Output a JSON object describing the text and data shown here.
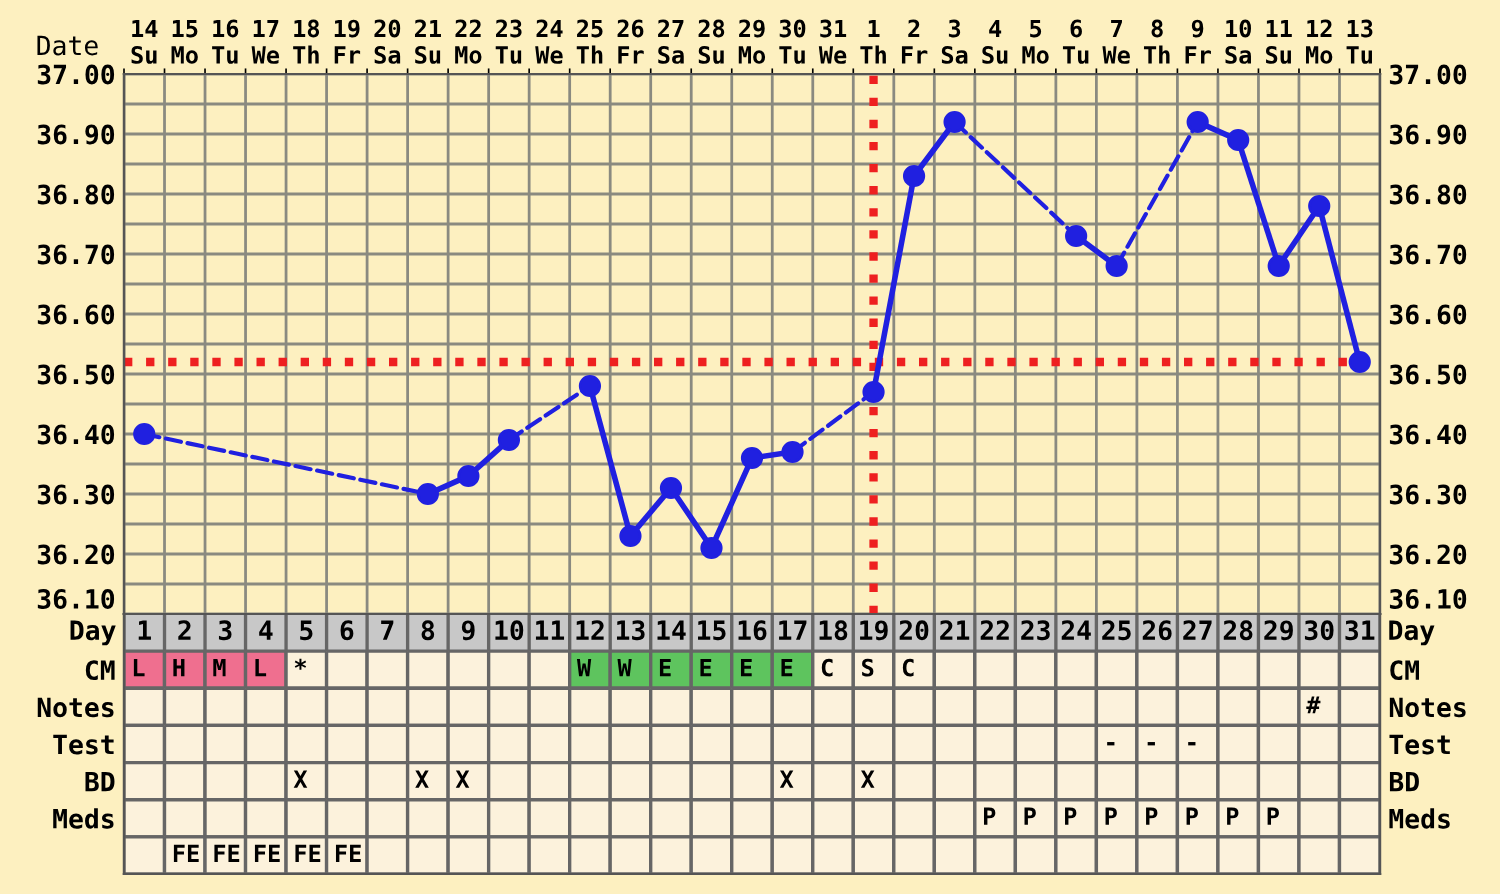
{
  "chart_data": [
    {
      "type": "line",
      "xlabel": "Date",
      "categories": [
        "14\nSu",
        "15\nMo",
        "16\nTu",
        "17\nWe",
        "18\nTh",
        "19\nFr",
        "20\nSa",
        "21\nSu",
        "22\nMo",
        "23\nTu",
        "24\nWe",
        "25\nTh",
        "26\nFr",
        "27\nSa",
        "28\nSu",
        "29\nMo",
        "30\nTu",
        "31\nWe",
        "1\nTh",
        "2\nFr",
        "3\nSa",
        "4\nSu",
        "5\nMo",
        "6\nTu",
        "7\nWe",
        "8\nTh",
        "9\nFr",
        "10\nSa",
        "11\nSu",
        "12\nMo",
        "13\nTu"
      ],
      "series": [
        {
          "color": "#2020e0",
          "values": [
            36.4,
            null,
            null,
            null,
            null,
            null,
            null,
            36.3,
            36.33,
            36.39,
            null,
            36.48,
            36.23,
            36.31,
            36.21,
            36.36,
            36.37,
            null,
            36.47,
            36.83,
            36.92,
            null,
            null,
            36.73,
            36.68,
            null,
            36.92,
            36.89,
            36.68,
            36.78,
            36.52
          ]
        }
      ],
      "ylim": [
        36.1,
        37.0
      ],
      "yticks": [
        {
          "value": 36.1,
          "label": "36.10"
        },
        {
          "value": 36.15,
          "label": null
        },
        {
          "value": 36.2,
          "label": "36.20"
        },
        {
          "value": 36.25,
          "label": null
        },
        {
          "value": 36.3,
          "label": "36.30"
        },
        {
          "value": 36.35,
          "label": null
        },
        {
          "value": 36.4,
          "label": "36.40"
        },
        {
          "value": 36.45,
          "label": null
        },
        {
          "value": 36.5,
          "label": "36.50"
        },
        {
          "value": 36.55,
          "label": null
        },
        {
          "value": 36.6,
          "label": "36.60"
        },
        {
          "value": 36.65,
          "label": null
        },
        {
          "value": 36.7,
          "label": "36.70"
        },
        {
          "value": 36.75,
          "label": null
        },
        {
          "value": 36.8,
          "label": "36.80"
        },
        {
          "value": 36.85,
          "label": null
        },
        {
          "value": 36.9,
          "label": "36.90"
        },
        {
          "value": 36.95,
          "label": null
        },
        {
          "value": 37.0,
          "label": "37.00"
        }
      ],
      "y2lim": [
        36.1,
        37.0
      ],
      "y2ticks": [
        {
          "value": 36.1,
          "label": "36.10"
        },
        {
          "value": 36.15,
          "label": null
        },
        {
          "value": 36.2,
          "label": "36.20"
        },
        {
          "value": 36.25,
          "label": null
        },
        {
          "value": 36.3,
          "label": "36.30"
        },
        {
          "value": 36.35,
          "label": null
        },
        {
          "value": 36.4,
          "label": "36.40"
        },
        {
          "value": 36.45,
          "label": null
        },
        {
          "value": 36.5,
          "label": "36.50"
        },
        {
          "value": 36.55,
          "label": null
        },
        {
          "value": 36.6,
          "label": "36.60"
        },
        {
          "value": 36.65,
          "label": null
        },
        {
          "value": 36.7,
          "label": "36.70"
        },
        {
          "value": 36.75,
          "label": null
        },
        {
          "value": 36.8,
          "label": "36.80"
        },
        {
          "value": 36.85,
          "label": null
        },
        {
          "value": 36.9,
          "label": "36.90"
        },
        {
          "value": 36.95,
          "label": null
        },
        {
          "value": 37.0,
          "label": "37.00"
        }
      ],
      "ref_lines": [
        {
          "axis": "y",
          "value": 36.52,
          "color": "#ee2020",
          "line_style": "dotted"
        },
        {
          "axis": "x",
          "value": "1\nTh",
          "color": "#ee2020",
          "line_style": "dotted"
        }
      ],
      "grid": true,
      "marker": "circle",
      "line_style": "solid",
      "legend": false
    },
    {
      "type": "heatmap",
      "xlabel": "Day",
      "categories": [
        "1",
        "2",
        "3",
        "4",
        "5",
        "6",
        "7",
        "8",
        "9",
        "10",
        "11",
        "12",
        "13",
        "14",
        "15",
        "16",
        "17",
        "18",
        "19",
        "20",
        "21",
        "22",
        "23",
        "24",
        "25",
        "26",
        "27",
        "28",
        "29",
        "30",
        "31"
      ],
      "y_categories": [
        "CM",
        "Notes",
        "Test",
        "BD",
        "Meds",
        null
      ],
      "y2_categories": [
        "CM",
        "Notes",
        "Test",
        "BD",
        "Meds",
        null
      ],
      "cells": [
        [
          "L",
          "H",
          "M",
          "L",
          "*",
          null,
          null,
          null,
          null,
          null,
          null,
          "W",
          "W",
          "E",
          "E",
          "E",
          "E",
          "C",
          "S",
          "C",
          null,
          null,
          null,
          null,
          null,
          null,
          null,
          null,
          null,
          null,
          null
        ],
        [
          null,
          null,
          null,
          null,
          null,
          null,
          null,
          null,
          null,
          null,
          null,
          null,
          null,
          null,
          null,
          null,
          null,
          null,
          null,
          null,
          null,
          null,
          null,
          null,
          null,
          null,
          null,
          null,
          null,
          "#",
          null
        ],
        [
          null,
          null,
          null,
          null,
          null,
          null,
          null,
          null,
          null,
          null,
          null,
          null,
          null,
          null,
          null,
          null,
          null,
          null,
          null,
          null,
          null,
          null,
          null,
          null,
          "-",
          "-",
          "-",
          null,
          null,
          null,
          null
        ],
        [
          null,
          null,
          null,
          null,
          "X",
          null,
          null,
          "X",
          "X",
          null,
          null,
          null,
          null,
          null,
          null,
          null,
          "X",
          null,
          "X",
          null,
          null,
          null,
          null,
          null,
          null,
          null,
          null,
          null,
          null,
          null,
          null
        ],
        [
          null,
          null,
          null,
          null,
          null,
          null,
          null,
          null,
          null,
          null,
          null,
          null,
          null,
          null,
          null,
          null,
          null,
          null,
          null,
          null,
          null,
          "P",
          "P",
          "P",
          "P",
          "P",
          "P",
          "P",
          "P",
          null,
          null
        ],
        [
          null,
          "FE",
          "FE",
          "FE",
          "FE",
          "FE",
          null,
          null,
          null,
          null,
          null,
          null,
          null,
          null,
          null,
          null,
          null,
          null,
          null,
          null,
          null,
          null,
          null,
          null,
          null,
          null,
          null,
          null,
          null,
          null,
          null
        ]
      ],
      "colors": [
        [
          "#ef6f8f",
          "#ef6f8f",
          "#ef6f8f",
          "#ef6f8f",
          "#fcf2dc",
          "#fcf2dc",
          "#fcf2dc",
          "#fcf2dc",
          "#fcf2dc",
          "#fcf2dc",
          "#fcf2dc",
          "#5ec45e",
          "#5ec45e",
          "#5ec45e",
          "#5ec45e",
          "#5ec45e",
          "#5ec45e",
          "#fcf2dc",
          "#fcf2dc",
          "#fcf2dc",
          "#fcf2dc",
          "#fcf2dc",
          "#fcf2dc",
          "#fcf2dc",
          "#fcf2dc",
          "#fcf2dc",
          "#fcf2dc",
          "#fcf2dc",
          "#fcf2dc",
          "#fcf2dc",
          "#fcf2dc"
        ],
        [
          "#fcf2dc",
          "#fcf2dc",
          "#fcf2dc",
          "#fcf2dc",
          "#fcf2dc",
          "#fcf2dc",
          "#fcf2dc",
          "#fcf2dc",
          "#fcf2dc",
          "#fcf2dc",
          "#fcf2dc",
          "#fcf2dc",
          "#fcf2dc",
          "#fcf2dc",
          "#fcf2dc",
          "#fcf2dc",
          "#fcf2dc",
          "#fcf2dc",
          "#fcf2dc",
          "#fcf2dc",
          "#fcf2dc",
          "#fcf2dc",
          "#fcf2dc",
          "#fcf2dc",
          "#fcf2dc",
          "#fcf2dc",
          "#fcf2dc",
          "#fcf2dc",
          "#fcf2dc",
          "#fcf2dc",
          "#fcf2dc"
        ],
        [
          "#fcf2dc",
          "#fcf2dc",
          "#fcf2dc",
          "#fcf2dc",
          "#fcf2dc",
          "#fcf2dc",
          "#fcf2dc",
          "#fcf2dc",
          "#fcf2dc",
          "#fcf2dc",
          "#fcf2dc",
          "#fcf2dc",
          "#fcf2dc",
          "#fcf2dc",
          "#fcf2dc",
          "#fcf2dc",
          "#fcf2dc",
          "#fcf2dc",
          "#fcf2dc",
          "#fcf2dc",
          "#fcf2dc",
          "#fcf2dc",
          "#fcf2dc",
          "#fcf2dc",
          "#fcf2dc",
          "#fcf2dc",
          "#fcf2dc",
          "#fcf2dc",
          "#fcf2dc",
          "#fcf2dc",
          "#fcf2dc"
        ],
        [
          "#fcf2dc",
          "#fcf2dc",
          "#fcf2dc",
          "#fcf2dc",
          "#fcf2dc",
          "#fcf2dc",
          "#fcf2dc",
          "#fcf2dc",
          "#fcf2dc",
          "#fcf2dc",
          "#fcf2dc",
          "#fcf2dc",
          "#fcf2dc",
          "#fcf2dc",
          "#fcf2dc",
          "#fcf2dc",
          "#fcf2dc",
          "#fcf2dc",
          "#fcf2dc",
          "#fcf2dc",
          "#fcf2dc",
          "#fcf2dc",
          "#fcf2dc",
          "#fcf2dc",
          "#fcf2dc",
          "#fcf2dc",
          "#fcf2dc",
          "#fcf2dc",
          "#fcf2dc",
          "#fcf2dc",
          "#fcf2dc"
        ],
        [
          "#fcf2dc",
          "#fcf2dc",
          "#fcf2dc",
          "#fcf2dc",
          "#fcf2dc",
          "#fcf2dc",
          "#fcf2dc",
          "#fcf2dc",
          "#fcf2dc",
          "#fcf2dc",
          "#fcf2dc",
          "#fcf2dc",
          "#fcf2dc",
          "#fcf2dc",
          "#fcf2dc",
          "#fcf2dc",
          "#fcf2dc",
          "#fcf2dc",
          "#fcf2dc",
          "#fcf2dc",
          "#fcf2dc",
          "#fcf2dc",
          "#fcf2dc",
          "#fcf2dc",
          "#fcf2dc",
          "#fcf2dc",
          "#fcf2dc",
          "#fcf2dc",
          "#fcf2dc",
          "#fcf2dc",
          "#fcf2dc"
        ],
        [
          "#fcf2dc",
          "#fcf2dc",
          "#fcf2dc",
          "#fcf2dc",
          "#fcf2dc",
          "#fcf2dc",
          "#fcf2dc",
          "#fcf2dc",
          "#fcf2dc",
          "#fcf2dc",
          "#fcf2dc",
          "#fcf2dc",
          "#fcf2dc",
          "#fcf2dc",
          "#fcf2dc",
          "#fcf2dc",
          "#fcf2dc",
          "#fcf2dc",
          "#fcf2dc",
          "#fcf2dc",
          "#fcf2dc",
          "#fcf2dc",
          "#fcf2dc",
          "#fcf2dc",
          "#fcf2dc",
          "#fcf2dc",
          "#fcf2dc",
          "#fcf2dc",
          "#fcf2dc",
          "#fcf2dc",
          "#fcf2dc"
        ]
      ]
    }
  ]
}
